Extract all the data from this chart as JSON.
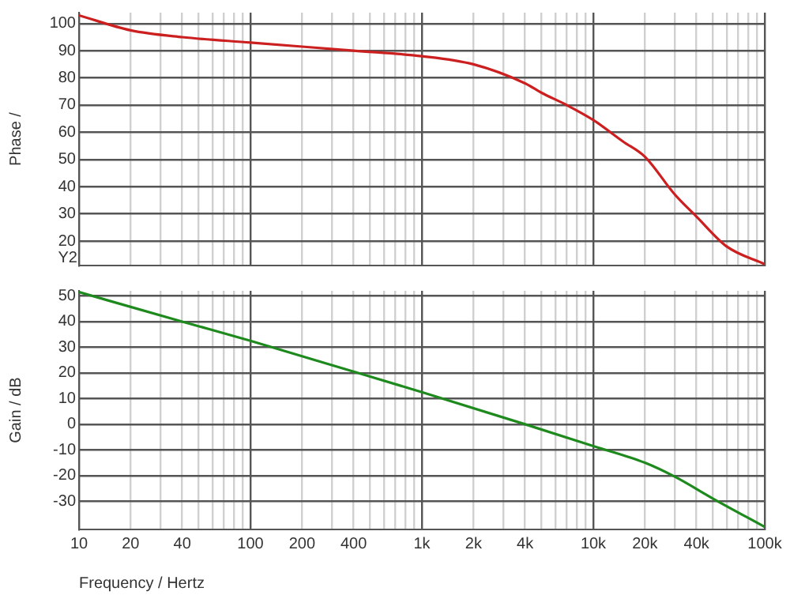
{
  "chart_data": [
    {
      "type": "line",
      "ylabel": "Phase /",
      "annotations": [
        "Y2"
      ],
      "log": "x",
      "grid": true,
      "tick_labels": "y",
      "marker": "none",
      "line_style": "solid",
      "legend": false,
      "xlim": [
        10,
        100000
      ],
      "ylim": [
        11,
        104
      ],
      "yticks": [
        20,
        30,
        40,
        50,
        60,
        70,
        80,
        90,
        100
      ],
      "xticks": [
        10,
        {
          "value": 20,
          "label": null
        },
        {
          "value": 30,
          "label": null
        },
        {
          "value": 40,
          "label": null
        },
        {
          "value": 50,
          "label": null
        },
        {
          "value": 60,
          "label": null
        },
        {
          "value": 70,
          "label": null
        },
        {
          "value": 80,
          "label": null
        },
        {
          "value": 90,
          "label": null
        },
        100,
        {
          "value": 200,
          "label": null
        },
        {
          "value": 300,
          "label": null
        },
        {
          "value": 400,
          "label": null
        },
        {
          "value": 500,
          "label": null
        },
        {
          "value": 600,
          "label": null
        },
        {
          "value": 700,
          "label": null
        },
        {
          "value": 800,
          "label": null
        },
        {
          "value": 900,
          "label": null
        },
        {
          "value": 1000,
          "label": null
        },
        {
          "value": 2000,
          "label": null
        },
        {
          "value": 3000,
          "label": null
        },
        {
          "value": 4000,
          "label": null
        },
        {
          "value": 5000,
          "label": null
        },
        {
          "value": 6000,
          "label": null
        },
        {
          "value": 7000,
          "label": null
        },
        {
          "value": 8000,
          "label": null
        },
        {
          "value": 9000,
          "label": null
        },
        {
          "value": 10000,
          "label": null
        },
        {
          "value": 20000,
          "label": null
        },
        {
          "value": 30000,
          "label": null
        },
        {
          "value": 40000,
          "label": null
        },
        {
          "value": 50000,
          "label": null
        },
        {
          "value": 60000,
          "label": null
        },
        {
          "value": 70000,
          "label": null
        },
        {
          "value": 80000,
          "label": null
        },
        {
          "value": 90000,
          "label": null
        },
        {
          "value": 100000,
          "label": null
        }
      ],
      "series": [
        {
          "color": "#cc1f1f",
          "x": [
            10,
            20,
            40,
            100,
            400,
            1000,
            2000,
            4000,
            5000,
            7000,
            10000,
            15000,
            20000,
            30000,
            40000,
            60000,
            100000
          ],
          "values": [
            103,
            97.5,
            95,
            93,
            90,
            88,
            85,
            78,
            74.5,
            70,
            64.5,
            56.5,
            51,
            37,
            29,
            18,
            11.5
          ]
        }
      ]
    },
    {
      "type": "line",
      "ylabel": "Gain / dB",
      "xlabel": "Frequency / Hertz",
      "log": "x",
      "grid": true,
      "marker": "none",
      "line_style": "solid",
      "legend": false,
      "xlim": [
        10,
        100000
      ],
      "ylim": [
        -41,
        52
      ],
      "yticks": [
        -30,
        -20,
        -10,
        0,
        10,
        20,
        30,
        40,
        50
      ],
      "xticks": [
        10,
        20,
        {
          "value": 30,
          "label": null
        },
        40,
        {
          "value": 50,
          "label": null
        },
        {
          "value": 60,
          "label": null
        },
        {
          "value": 70,
          "label": null
        },
        {
          "value": 80,
          "label": null
        },
        {
          "value": 90,
          "label": null
        },
        100,
        200,
        {
          "value": 300,
          "label": null
        },
        400,
        {
          "value": 500,
          "label": null
        },
        {
          "value": 600,
          "label": null
        },
        {
          "value": 700,
          "label": null
        },
        {
          "value": 800,
          "label": null
        },
        {
          "value": 900,
          "label": null
        },
        {
          "value": 1000,
          "label": "1k"
        },
        {
          "value": 2000,
          "label": "2k"
        },
        {
          "value": 3000,
          "label": null
        },
        {
          "value": 4000,
          "label": "4k"
        },
        {
          "value": 5000,
          "label": null
        },
        {
          "value": 6000,
          "label": null
        },
        {
          "value": 7000,
          "label": null
        },
        {
          "value": 8000,
          "label": null
        },
        {
          "value": 9000,
          "label": null
        },
        {
          "value": 10000,
          "label": "10k"
        },
        {
          "value": 20000,
          "label": "20k"
        },
        {
          "value": 30000,
          "label": null
        },
        {
          "value": 40000,
          "label": "40k"
        },
        {
          "value": 50000,
          "label": null
        },
        {
          "value": 60000,
          "label": null
        },
        {
          "value": 70000,
          "label": null
        },
        {
          "value": 80000,
          "label": null
        },
        {
          "value": 90000,
          "label": null
        },
        {
          "value": 100000,
          "label": "100k"
        }
      ],
      "series": [
        {
          "color": "#1e8a1e",
          "x": [
            10,
            40,
            100,
            400,
            1000,
            4000,
            10000,
            20000,
            30000,
            50000,
            100000
          ],
          "values": [
            51.5,
            40,
            32.5,
            20.5,
            12.5,
            0,
            -8.5,
            -15,
            -20.5,
            -29,
            -40
          ]
        }
      ]
    }
  ]
}
